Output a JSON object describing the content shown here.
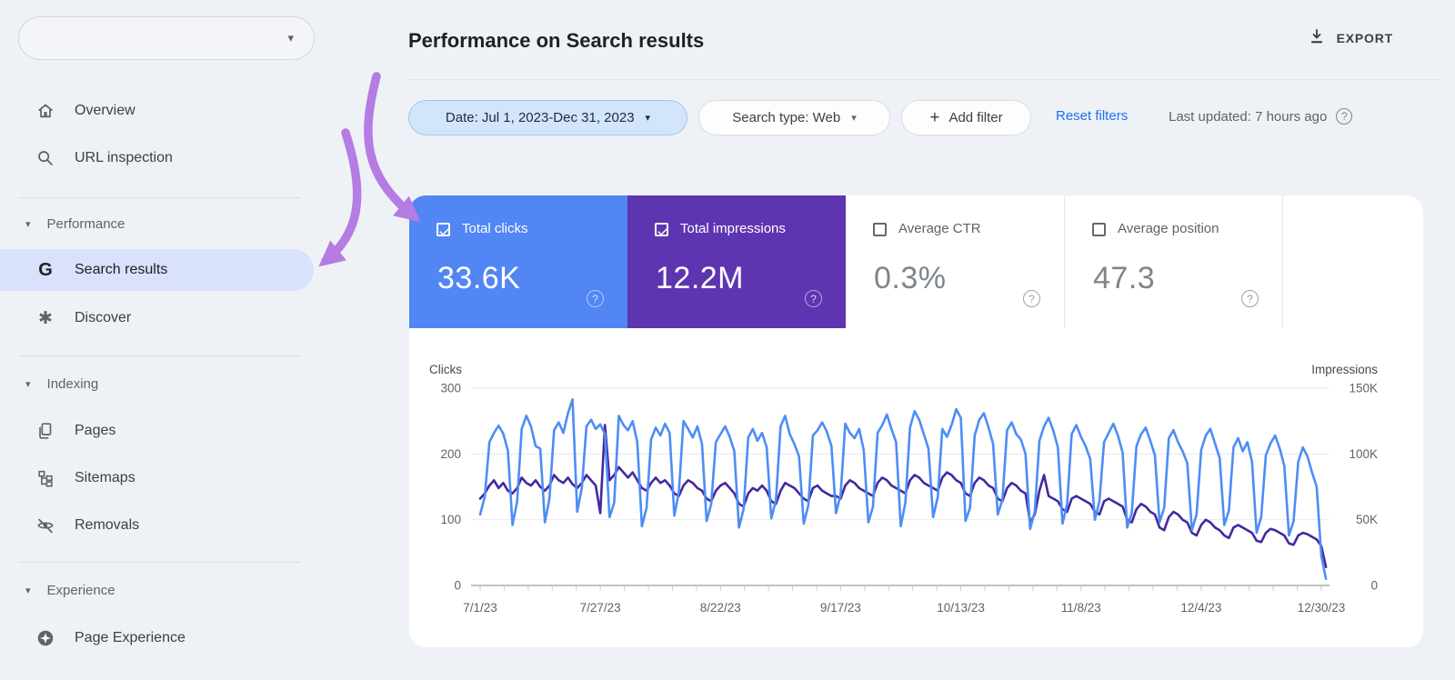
{
  "sidebar": {
    "property_selector": {
      "caret": "▾"
    },
    "items_top": [
      {
        "icon": "home-icon",
        "label": "Overview"
      },
      {
        "icon": "search-icon",
        "label": "URL inspection"
      }
    ],
    "sections": [
      {
        "label": "Performance",
        "items": [
          {
            "icon": "google-g-icon",
            "label": "Search results",
            "selected": true
          },
          {
            "icon": "discover-spark-icon",
            "label": "Discover",
            "selected": false
          }
        ]
      },
      {
        "label": "Indexing",
        "items": [
          {
            "icon": "pages-icon",
            "label": "Pages",
            "selected": false
          },
          {
            "icon": "sitemaps-icon",
            "label": "Sitemaps",
            "selected": false
          },
          {
            "icon": "removals-eye-off-icon",
            "label": "Removals",
            "selected": false
          }
        ]
      },
      {
        "label": "Experience",
        "items": [
          {
            "icon": "page-experience-icon",
            "label": "Page Experience",
            "selected": false
          }
        ]
      }
    ]
  },
  "header": {
    "title": "Performance on Search results",
    "export_label": "EXPORT"
  },
  "filters": {
    "date": "Date: Jul 1, 2023-Dec 31, 2023",
    "search_type": "Search type: Web",
    "add_filter": "Add filter",
    "plus": "+",
    "reset": "Reset filters",
    "last_updated": "Last updated: 7 hours ago",
    "help": "?"
  },
  "metrics": [
    {
      "label": "Total clicks",
      "value": "33.6K",
      "checked": true,
      "color": "#5286f5"
    },
    {
      "label": "Total impressions",
      "value": "12.2M",
      "checked": true,
      "color": "#5e35b1"
    },
    {
      "label": "Average CTR",
      "value": "0.3%",
      "checked": false,
      "color": "#ffffff"
    },
    {
      "label": "Average position",
      "value": "47.3",
      "checked": false,
      "color": "#ffffff"
    }
  ],
  "chart_data": {
    "type": "line",
    "x_start": "7/1/23",
    "x_end": "12/31/23",
    "x_unit": "day",
    "x_tick_labels": [
      "7/1/23",
      "7/27/23",
      "8/22/23",
      "9/17/23",
      "10/13/23",
      "11/8/23",
      "12/4/23",
      "12/30/23"
    ],
    "left_axis": {
      "label": "Clicks",
      "ticks": [
        0,
        100,
        200,
        300
      ],
      "range": [
        0,
        300
      ]
    },
    "right_axis": {
      "label": "Impressions",
      "tick_labels": [
        "0",
        "50K",
        "100K",
        "150K"
      ],
      "range_k": [
        0,
        150
      ]
    },
    "grid": true,
    "legend_position": "none",
    "series": [
      {
        "name": "Total clicks",
        "axis": "left",
        "color": "#4d8df5",
        "values": [
          108,
          135,
          218,
          232,
          243,
          231,
          205,
          92,
          128,
          238,
          258,
          242,
          212,
          208,
          96,
          132,
          236,
          248,
          232,
          262,
          283,
          112,
          148,
          242,
          252,
          238,
          245,
          230,
          104,
          126,
          258,
          244,
          236,
          250,
          218,
          90,
          118,
          222,
          240,
          228,
          246,
          232,
          106,
          142,
          250,
          238,
          225,
          242,
          215,
          98,
          124,
          218,
          230,
          242,
          226,
          204,
          88,
          116,
          225,
          238,
          220,
          232,
          210,
          102,
          130,
          242,
          258,
          230,
          215,
          196,
          94,
          122,
          228,
          236,
          248,
          234,
          212,
          110,
          138,
          246,
          232,
          224,
          238,
          206,
          96,
          120,
          232,
          244,
          260,
          238,
          218,
          90,
          126,
          240,
          265,
          252,
          230,
          208,
          104,
          134,
          238,
          226,
          244,
          268,
          255,
          98,
          118,
          228,
          252,
          262,
          240,
          215,
          108,
          130,
          236,
          248,
          230,
          222,
          200,
          86,
          112,
          220,
          242,
          255,
          236,
          210,
          94,
          124,
          230,
          244,
          226,
          212,
          192,
          100,
          128,
          218,
          232,
          246,
          228,
          202,
          88,
          110,
          212,
          230,
          240,
          220,
          198,
          96,
          118,
          224,
          236,
          218,
          204,
          186,
          84,
          108,
          206,
          228,
          238,
          216,
          194,
          92,
          114,
          210,
          224,
          204,
          218,
          188,
          80,
          104,
          198,
          216,
          228,
          208,
          182,
          76,
          98,
          188,
          210,
          196,
          172,
          150,
          45,
          10
        ]
      },
      {
        "name": "Total impressions",
        "axis": "right",
        "color": "#4527a0",
        "unit": "thousands",
        "values_k": [
          66,
          70,
          76,
          80,
          74,
          78,
          72,
          70,
          74,
          82,
          78,
          76,
          80,
          75,
          72,
          76,
          84,
          80,
          78,
          82,
          77,
          74,
          78,
          84,
          80,
          76,
          55,
          122,
          80,
          84,
          90,
          86,
          82,
          86,
          80,
          74,
          72,
          78,
          82,
          78,
          80,
          76,
          70,
          68,
          76,
          80,
          78,
          74,
          72,
          66,
          64,
          72,
          76,
          78,
          74,
          70,
          62,
          60,
          70,
          74,
          72,
          76,
          72,
          64,
          62,
          72,
          78,
          76,
          74,
          70,
          66,
          64,
          74,
          76,
          72,
          70,
          68,
          68,
          66,
          76,
          80,
          78,
          74,
          72,
          70,
          68,
          78,
          82,
          80,
          76,
          74,
          72,
          70,
          80,
          84,
          82,
          78,
          76,
          74,
          72,
          82,
          86,
          84,
          80,
          78,
          70,
          68,
          78,
          82,
          80,
          76,
          74,
          66,
          64,
          74,
          78,
          76,
          72,
          70,
          48,
          54,
          72,
          84,
          68,
          66,
          64,
          58,
          56,
          66,
          68,
          66,
          64,
          62,
          56,
          54,
          64,
          66,
          64,
          62,
          60,
          50,
          48,
          58,
          62,
          60,
          56,
          54,
          44,
          42,
          52,
          56,
          54,
          50,
          48,
          40,
          38,
          46,
          50,
          48,
          44,
          42,
          38,
          36,
          44,
          46,
          44,
          42,
          40,
          34,
          33,
          40,
          43,
          42,
          40,
          38,
          32,
          31,
          38,
          40,
          39,
          37,
          35,
          30,
          14
        ]
      }
    ]
  },
  "annotation": {
    "arrow_color": "#b57ce3"
  }
}
